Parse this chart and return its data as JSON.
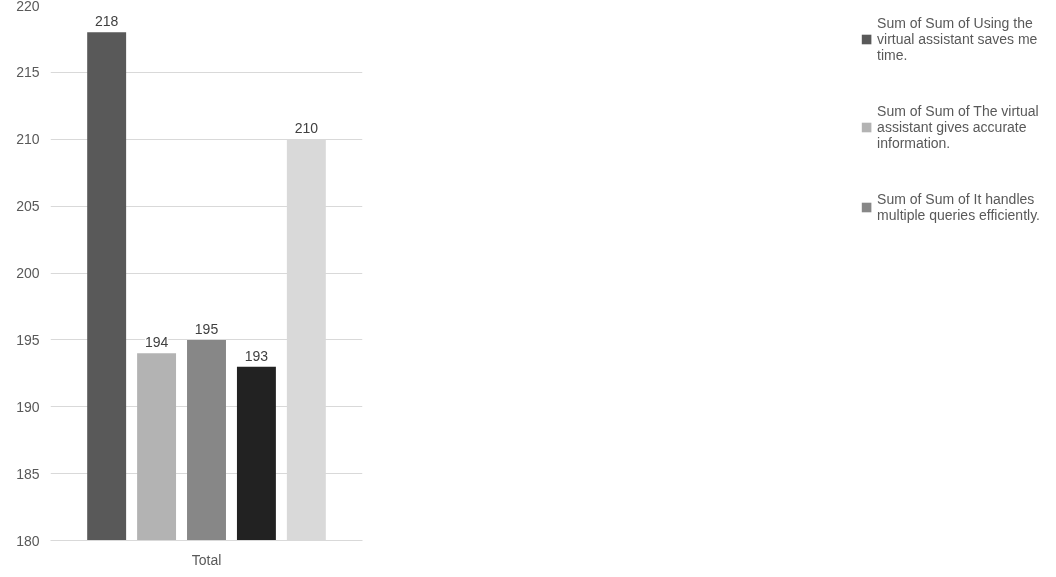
{
  "chart_data": {
    "type": "bar",
    "categories": [
      "Total"
    ],
    "series": [
      {
        "name": "Sum of Sum of Using the virtual assistant saves me time.",
        "color": "#595959",
        "values": [
          218
        ]
      },
      {
        "name": "Sum of Sum of The virtual assistant gives accurate information.",
        "color": "#b3b3b3",
        "values": [
          194
        ]
      },
      {
        "name": "Sum of Sum of It handles multiple queries efficiently.",
        "color": "#878787",
        "values": [
          195
        ]
      },
      {
        "color": "#222222",
        "values": [
          193
        ]
      },
      {
        "color": "#d9d9d9",
        "values": [
          210
        ]
      }
    ],
    "ylim": [
      180,
      220
    ],
    "yticks": [
      180,
      185,
      190,
      195,
      200,
      205,
      210,
      215,
      220
    ],
    "grid": "y",
    "legend": "right",
    "data_labels": true
  }
}
